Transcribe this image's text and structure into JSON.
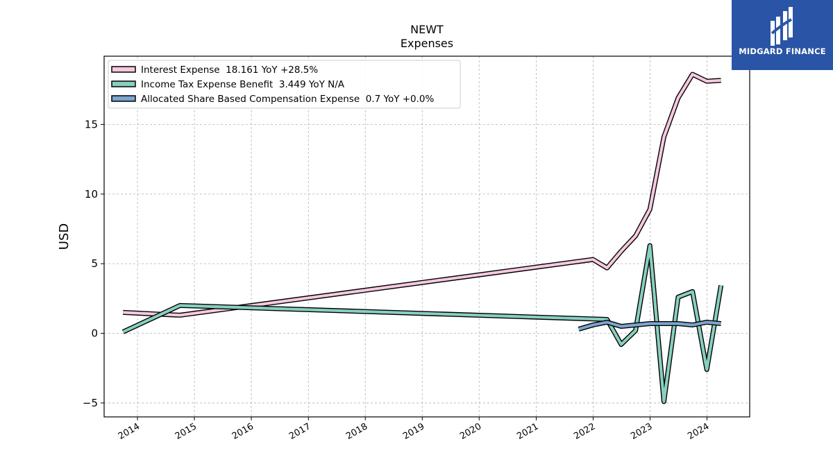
{
  "logo": {
    "name": "MIDGARD FINANCE",
    "background": "#2a55a6"
  },
  "chart_data": {
    "type": "line",
    "title": "NEWT",
    "subtitle": "Expenses",
    "xlabel": "",
    "ylabel": "USD",
    "xlim": [
      "2013-06-01",
      "2024-10-01"
    ],
    "ylim": [
      -6,
      19.9
    ],
    "yticks": [
      -5,
      0,
      5,
      10,
      15
    ],
    "ytick_labels": [
      "−5",
      "0",
      "5",
      "10",
      "15"
    ],
    "xticks": [
      "2014",
      "2015",
      "2016",
      "2017",
      "2018",
      "2019",
      "2020",
      "2021",
      "2022",
      "2023",
      "2024"
    ],
    "grid": true,
    "legend_position": "top-left",
    "series": [
      {
        "name": "Interest Expense  18.161 YoY +28.5%",
        "color": "#f6c9df",
        "points": [
          [
            "2013-09-30",
            1.5
          ],
          [
            "2014-09-30",
            1.3
          ],
          [
            "2021-12-31",
            5.3
          ],
          [
            "2022-03-31",
            4.7
          ],
          [
            "2022-06-30",
            5.9
          ],
          [
            "2022-09-30",
            7.0
          ],
          [
            "2022-12-31",
            8.9
          ],
          [
            "2023-03-31",
            14.1
          ],
          [
            "2023-06-30",
            16.9
          ],
          [
            "2023-09-30",
            18.6
          ],
          [
            "2023-12-31",
            18.1
          ],
          [
            "2024-03-31",
            18.161
          ]
        ]
      },
      {
        "name": "Income Tax Expense Benefit  3.449 YoY N/A",
        "color": "#88cfc0",
        "points": [
          [
            "2013-09-30",
            0.1
          ],
          [
            "2014-09-30",
            2.0
          ],
          [
            "2022-03-31",
            1.0
          ],
          [
            "2022-06-30",
            -0.8
          ],
          [
            "2022-09-30",
            0.2
          ],
          [
            "2022-12-31",
            6.3
          ],
          [
            "2023-03-31",
            -4.9
          ],
          [
            "2023-06-30",
            2.6
          ],
          [
            "2023-09-30",
            3.0
          ],
          [
            "2023-12-31",
            -2.6
          ],
          [
            "2024-03-31",
            3.449
          ]
        ]
      },
      {
        "name": "Allocated Share Based Compensation Expense  0.7 YoY +0.0%",
        "color": "#7aa6cf",
        "points": [
          [
            "2021-09-30",
            0.3
          ],
          [
            "2021-12-31",
            0.6
          ],
          [
            "2022-03-31",
            0.8
          ],
          [
            "2022-06-30",
            0.5
          ],
          [
            "2022-09-30",
            0.6
          ],
          [
            "2022-12-31",
            0.7
          ],
          [
            "2023-03-31",
            0.7
          ],
          [
            "2023-06-30",
            0.7
          ],
          [
            "2023-09-30",
            0.6
          ],
          [
            "2023-12-31",
            0.8
          ],
          [
            "2024-03-31",
            0.7
          ]
        ]
      }
    ]
  }
}
